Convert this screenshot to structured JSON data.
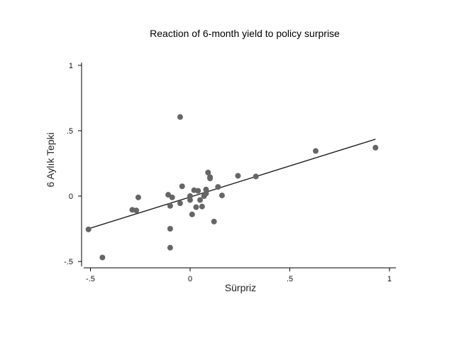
{
  "chart_data": {
    "type": "scatter",
    "title": "Reaction of 6-month yield to policy surprise",
    "xlabel": "Sürpriz",
    "ylabel": "6 Aylık Tepki",
    "xlim": [
      -0.53,
      1.0
    ],
    "ylim": [
      -0.53,
      1.0
    ],
    "x_ticks": [
      {
        "value": -0.5,
        "label": "-.5"
      },
      {
        "value": 0,
        "label": "0"
      },
      {
        "value": 0.5,
        "label": ".5"
      },
      {
        "value": 1,
        "label": "1"
      }
    ],
    "y_ticks": [
      {
        "value": -0.5,
        "label": "-.5"
      },
      {
        "value": 0,
        "label": "0"
      },
      {
        "value": 0.5,
        "label": ".5"
      },
      {
        "value": 1,
        "label": "1"
      }
    ],
    "grid": false,
    "legend": "none",
    "colors": {
      "points": "#666666",
      "line": "#222222",
      "axis": "#000000"
    },
    "series": [
      {
        "type": "scatter",
        "points": [
          {
            "x": -0.51,
            "y": -0.255
          },
          {
            "x": -0.44,
            "y": -0.47
          },
          {
            "x": -0.29,
            "y": -0.105
          },
          {
            "x": -0.27,
            "y": -0.11
          },
          {
            "x": -0.26,
            "y": -0.01
          },
          {
            "x": -0.11,
            "y": 0.01
          },
          {
            "x": -0.1,
            "y": -0.075
          },
          {
            "x": -0.09,
            "y": -0.01
          },
          {
            "x": -0.1,
            "y": -0.25
          },
          {
            "x": -0.1,
            "y": -0.395
          },
          {
            "x": -0.05,
            "y": 0.605
          },
          {
            "x": -0.04,
            "y": 0.075
          },
          {
            "x": -0.05,
            "y": -0.055
          },
          {
            "x": 0.0,
            "y": 0.0
          },
          {
            "x": 0.0,
            "y": -0.03
          },
          {
            "x": 0.01,
            "y": -0.14
          },
          {
            "x": 0.02,
            "y": 0.045
          },
          {
            "x": 0.03,
            "y": -0.085
          },
          {
            "x": 0.04,
            "y": 0.04
          },
          {
            "x": 0.05,
            "y": -0.03
          },
          {
            "x": 0.06,
            "y": -0.08
          },
          {
            "x": 0.07,
            "y": 0.0
          },
          {
            "x": 0.08,
            "y": 0.05
          },
          {
            "x": 0.08,
            "y": 0.02
          },
          {
            "x": 0.09,
            "y": 0.18
          },
          {
            "x": 0.1,
            "y": 0.145
          },
          {
            "x": 0.1,
            "y": 0.135
          },
          {
            "x": 0.12,
            "y": -0.195
          },
          {
            "x": 0.14,
            "y": 0.07
          },
          {
            "x": 0.16,
            "y": 0.005
          },
          {
            "x": 0.24,
            "y": 0.155
          },
          {
            "x": 0.33,
            "y": 0.15
          },
          {
            "x": 0.63,
            "y": 0.345
          },
          {
            "x": 0.93,
            "y": 0.37
          }
        ]
      },
      {
        "type": "line",
        "points": [
          {
            "x": -0.51,
            "y": -0.25
          },
          {
            "x": 0.93,
            "y": 0.435
          }
        ]
      }
    ]
  }
}
